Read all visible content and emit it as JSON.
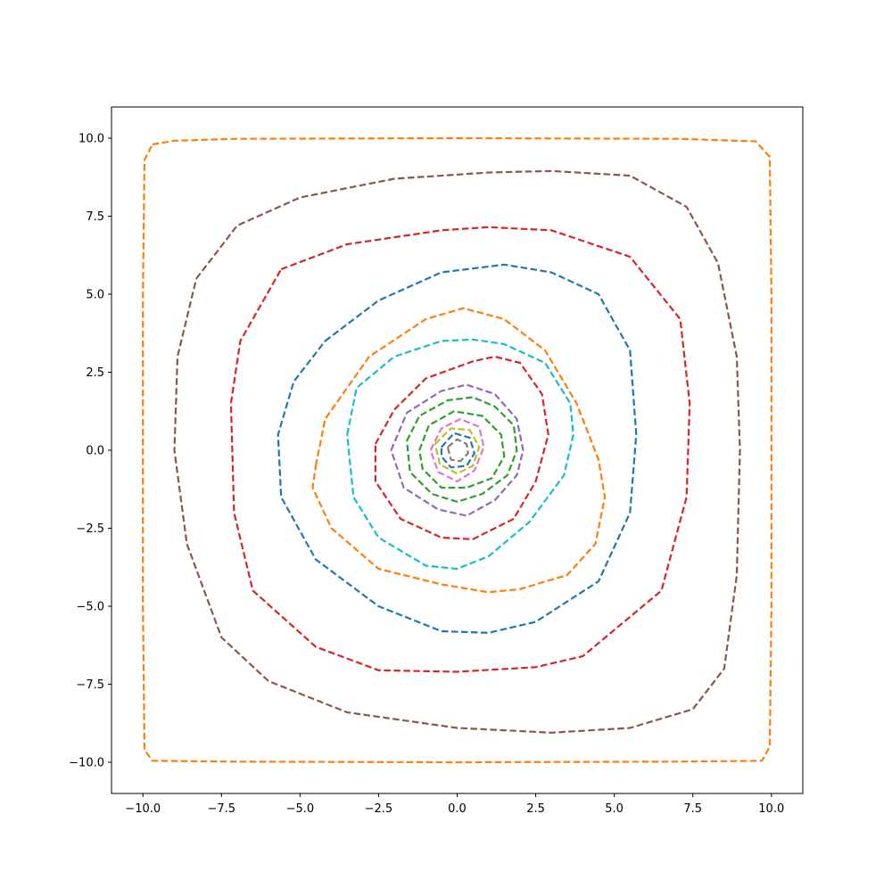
{
  "chart_data": {
    "type": "line",
    "title": "",
    "xlabel": "",
    "ylabel": "",
    "xlim": [
      -11,
      11
    ],
    "ylim": [
      -11,
      11
    ],
    "xticks": [
      -10,
      -7.5,
      -5,
      -2.5,
      0,
      2.5,
      5,
      7.5,
      10
    ],
    "yticks": [
      -10,
      -7.5,
      -5,
      -2.5,
      0,
      2.5,
      5,
      7.5,
      10
    ],
    "xtick_labels": [
      "−10.0",
      "−7.5",
      "−5.0",
      "−2.5",
      "0.0",
      "2.5",
      "5.0",
      "7.5",
      "10.0"
    ],
    "ytick_labels": [
      "−10.0",
      "−7.5",
      "−5.0",
      "−2.5",
      "0.0",
      "2.5",
      "5.0",
      "7.5",
      "10.0"
    ],
    "grid": false,
    "line_style": "dashed",
    "series": [
      {
        "color": "#ff7f0e",
        "points": [
          [
            -9.7,
            9.8
          ],
          [
            -9.0,
            9.92
          ],
          [
            -7.0,
            9.98
          ],
          [
            0,
            10.0
          ],
          [
            7.0,
            9.98
          ],
          [
            9.5,
            9.9
          ],
          [
            9.95,
            9.4
          ],
          [
            10.0,
            5.0
          ],
          [
            10.0,
            0
          ],
          [
            10.0,
            -5.0
          ],
          [
            9.95,
            -9.5
          ],
          [
            9.7,
            -9.95
          ],
          [
            7.0,
            -9.98
          ],
          [
            0,
            -10.0
          ],
          [
            -7.0,
            -9.98
          ],
          [
            -9.7,
            -9.95
          ],
          [
            -9.95,
            -9.6
          ],
          [
            -10.0,
            -5.0
          ],
          [
            -10.0,
            0
          ],
          [
            -10.0,
            5.0
          ],
          [
            -9.95,
            9.3
          ],
          [
            -9.7,
            9.8
          ]
        ]
      },
      {
        "color": "#8c564b",
        "points": [
          [
            -8.3,
            5.5
          ],
          [
            -7.0,
            7.2
          ],
          [
            -5.0,
            8.1
          ],
          [
            -2.0,
            8.7
          ],
          [
            1.0,
            8.9
          ],
          [
            3.0,
            8.95
          ],
          [
            5.5,
            8.8
          ],
          [
            7.3,
            7.8
          ],
          [
            8.3,
            6.0
          ],
          [
            8.9,
            3.0
          ],
          [
            9.0,
            0
          ],
          [
            8.9,
            -4.0
          ],
          [
            8.5,
            -7.0
          ],
          [
            7.5,
            -8.3
          ],
          [
            5.5,
            -8.9
          ],
          [
            3.0,
            -9.05
          ],
          [
            0,
            -8.9
          ],
          [
            -3.5,
            -8.4
          ],
          [
            -6.0,
            -7.4
          ],
          [
            -7.5,
            -6.0
          ],
          [
            -8.6,
            -3.0
          ],
          [
            -9.0,
            0
          ],
          [
            -8.9,
            3.0
          ],
          [
            -8.3,
            5.5
          ]
        ]
      },
      {
        "color": "#d62728",
        "points": [
          [
            -5.6,
            5.8
          ],
          [
            -3.5,
            6.6
          ],
          [
            -0.5,
            7.05
          ],
          [
            1.0,
            7.15
          ],
          [
            3.0,
            7.05
          ],
          [
            5.5,
            6.2
          ],
          [
            7.1,
            4.2
          ],
          [
            7.4,
            1.5
          ],
          [
            7.3,
            -1.5
          ],
          [
            6.5,
            -4.5
          ],
          [
            4.0,
            -6.6
          ],
          [
            2.5,
            -6.95
          ],
          [
            0,
            -7.1
          ],
          [
            -2.5,
            -7.05
          ],
          [
            -4.5,
            -6.3
          ],
          [
            -6.5,
            -4.5
          ],
          [
            -7.1,
            -2.0
          ],
          [
            -7.2,
            1.5
          ],
          [
            -6.9,
            3.5
          ],
          [
            -5.6,
            5.8
          ]
        ]
      },
      {
        "color": "#1f77b4",
        "points": [
          [
            -4.2,
            3.5
          ],
          [
            -2.5,
            4.8
          ],
          [
            -0.5,
            5.7
          ],
          [
            1.5,
            5.95
          ],
          [
            3.0,
            5.7
          ],
          [
            4.5,
            5.0
          ],
          [
            5.5,
            3.2
          ],
          [
            5.7,
            0.5
          ],
          [
            5.5,
            -2.0
          ],
          [
            4.5,
            -4.2
          ],
          [
            2.5,
            -5.5
          ],
          [
            1.0,
            -5.85
          ],
          [
            -0.5,
            -5.8
          ],
          [
            -2.5,
            -5.0
          ],
          [
            -4.5,
            -3.5
          ],
          [
            -5.6,
            -1.5
          ],
          [
            -5.7,
            0.5
          ],
          [
            -5.2,
            2.2
          ],
          [
            -4.2,
            3.5
          ]
        ]
      },
      {
        "color": "#ff7f0e",
        "points": [
          [
            -4.5,
            -0.5
          ],
          [
            -4.2,
            1.0
          ],
          [
            -2.8,
            3.0
          ],
          [
            -1.0,
            4.2
          ],
          [
            0.2,
            4.55
          ],
          [
            1.5,
            4.2
          ],
          [
            2.8,
            3.2
          ],
          [
            3.8,
            1.5
          ],
          [
            4.5,
            -0.3
          ],
          [
            4.7,
            -1.5
          ],
          [
            4.4,
            -3.0
          ],
          [
            3.5,
            -4.0
          ],
          [
            2.0,
            -4.45
          ],
          [
            1.0,
            -4.55
          ],
          [
            -0.5,
            -4.3
          ],
          [
            -2.5,
            -3.8
          ],
          [
            -4.0,
            -2.5
          ],
          [
            -4.6,
            -1.2
          ],
          [
            -4.5,
            -0.5
          ]
        ]
      },
      {
        "color": "#17becf",
        "points": [
          [
            -3.5,
            0.5
          ],
          [
            -3.2,
            2.0
          ],
          [
            -2.0,
            3.0
          ],
          [
            -0.5,
            3.5
          ],
          [
            0.5,
            3.55
          ],
          [
            1.5,
            3.4
          ],
          [
            2.8,
            2.8
          ],
          [
            3.6,
            1.5
          ],
          [
            3.7,
            0.5
          ],
          [
            3.4,
            -0.8
          ],
          [
            2.3,
            -2.3
          ],
          [
            1.0,
            -3.4
          ],
          [
            0,
            -3.8
          ],
          [
            -1.0,
            -3.7
          ],
          [
            -2.5,
            -2.8
          ],
          [
            -3.3,
            -1.5
          ],
          [
            -3.5,
            0.5
          ]
        ]
      },
      {
        "color": "#d62728",
        "points": [
          [
            -2.6,
            0.2
          ],
          [
            -2.0,
            1.3
          ],
          [
            -1.0,
            2.3
          ],
          [
            0.5,
            2.85
          ],
          [
            1.2,
            3.0
          ],
          [
            2.0,
            2.8
          ],
          [
            2.7,
            1.8
          ],
          [
            2.9,
            0.5
          ],
          [
            2.5,
            -1.0
          ],
          [
            1.8,
            -2.2
          ],
          [
            0.5,
            -2.85
          ],
          [
            -0.5,
            -2.8
          ],
          [
            -1.8,
            -2.2
          ],
          [
            -2.6,
            -1.0
          ],
          [
            -2.6,
            0.2
          ]
        ]
      },
      {
        "color": "#9467bd",
        "points": [
          [
            -2.1,
            0
          ],
          [
            -1.6,
            1.2
          ],
          [
            -0.5,
            1.9
          ],
          [
            0.3,
            2.1
          ],
          [
            1.2,
            1.8
          ],
          [
            1.9,
            1.0
          ],
          [
            2.1,
            0
          ],
          [
            1.9,
            -0.8
          ],
          [
            1.2,
            -1.6
          ],
          [
            0.3,
            -2.1
          ],
          [
            -0.6,
            -1.9
          ],
          [
            -1.7,
            -1.2
          ],
          [
            -2.1,
            0
          ]
        ]
      },
      {
        "color": "#2ca02c",
        "points": [
          [
            -1.6,
            0.3
          ],
          [
            -1.2,
            1.1
          ],
          [
            -0.3,
            1.6
          ],
          [
            0.5,
            1.7
          ],
          [
            1.2,
            1.4
          ],
          [
            1.8,
            0.8
          ],
          [
            1.9,
            0
          ],
          [
            1.6,
            -0.8
          ],
          [
            0.8,
            -1.4
          ],
          [
            0,
            -1.65
          ],
          [
            -0.8,
            -1.4
          ],
          [
            -1.5,
            -0.7
          ],
          [
            -1.6,
            0.3
          ]
        ]
      },
      {
        "color": "#2ca02c",
        "points": [
          [
            -1.2,
            0
          ],
          [
            -0.9,
            0.8
          ],
          [
            -0.1,
            1.25
          ],
          [
            0.8,
            1.1
          ],
          [
            1.4,
            0.5
          ],
          [
            1.5,
            -0.2
          ],
          [
            1.1,
            -0.9
          ],
          [
            0.3,
            -1.2
          ],
          [
            -0.5,
            -1.2
          ],
          [
            -1.1,
            -0.6
          ],
          [
            -1.2,
            0
          ]
        ]
      },
      {
        "color": "#e377c2",
        "points": [
          [
            -0.85,
            0
          ],
          [
            -0.5,
            0.7
          ],
          [
            0.1,
            1.0
          ],
          [
            0.7,
            0.75
          ],
          [
            0.85,
            0.1
          ],
          [
            0.55,
            -0.65
          ],
          [
            0,
            -1.0
          ],
          [
            -0.6,
            -0.7
          ],
          [
            -0.85,
            0
          ]
        ]
      },
      {
        "color": "#bcbd22",
        "points": [
          [
            -0.7,
            0.2
          ],
          [
            -0.2,
            0.7
          ],
          [
            0.4,
            0.65
          ],
          [
            0.7,
            0.1
          ],
          [
            0.5,
            -0.5
          ],
          [
            0,
            -0.75
          ],
          [
            -0.55,
            -0.45
          ],
          [
            -0.7,
            0.2
          ]
        ]
      },
      {
        "color": "#1f77b4",
        "points": [
          [
            -0.5,
            0.1
          ],
          [
            -0.1,
            0.55
          ],
          [
            0.4,
            0.4
          ],
          [
            0.55,
            -0.1
          ],
          [
            0.3,
            -0.5
          ],
          [
            -0.2,
            -0.55
          ],
          [
            -0.5,
            -0.2
          ],
          [
            -0.5,
            0.1
          ]
        ]
      },
      {
        "color": "#7f7f7f",
        "points": [
          [
            -0.3,
            0.1
          ],
          [
            0,
            0.35
          ],
          [
            0.3,
            0.2
          ],
          [
            0.35,
            -0.1
          ],
          [
            0.1,
            -0.35
          ],
          [
            -0.2,
            -0.3
          ],
          [
            -0.3,
            0.1
          ]
        ]
      }
    ]
  }
}
